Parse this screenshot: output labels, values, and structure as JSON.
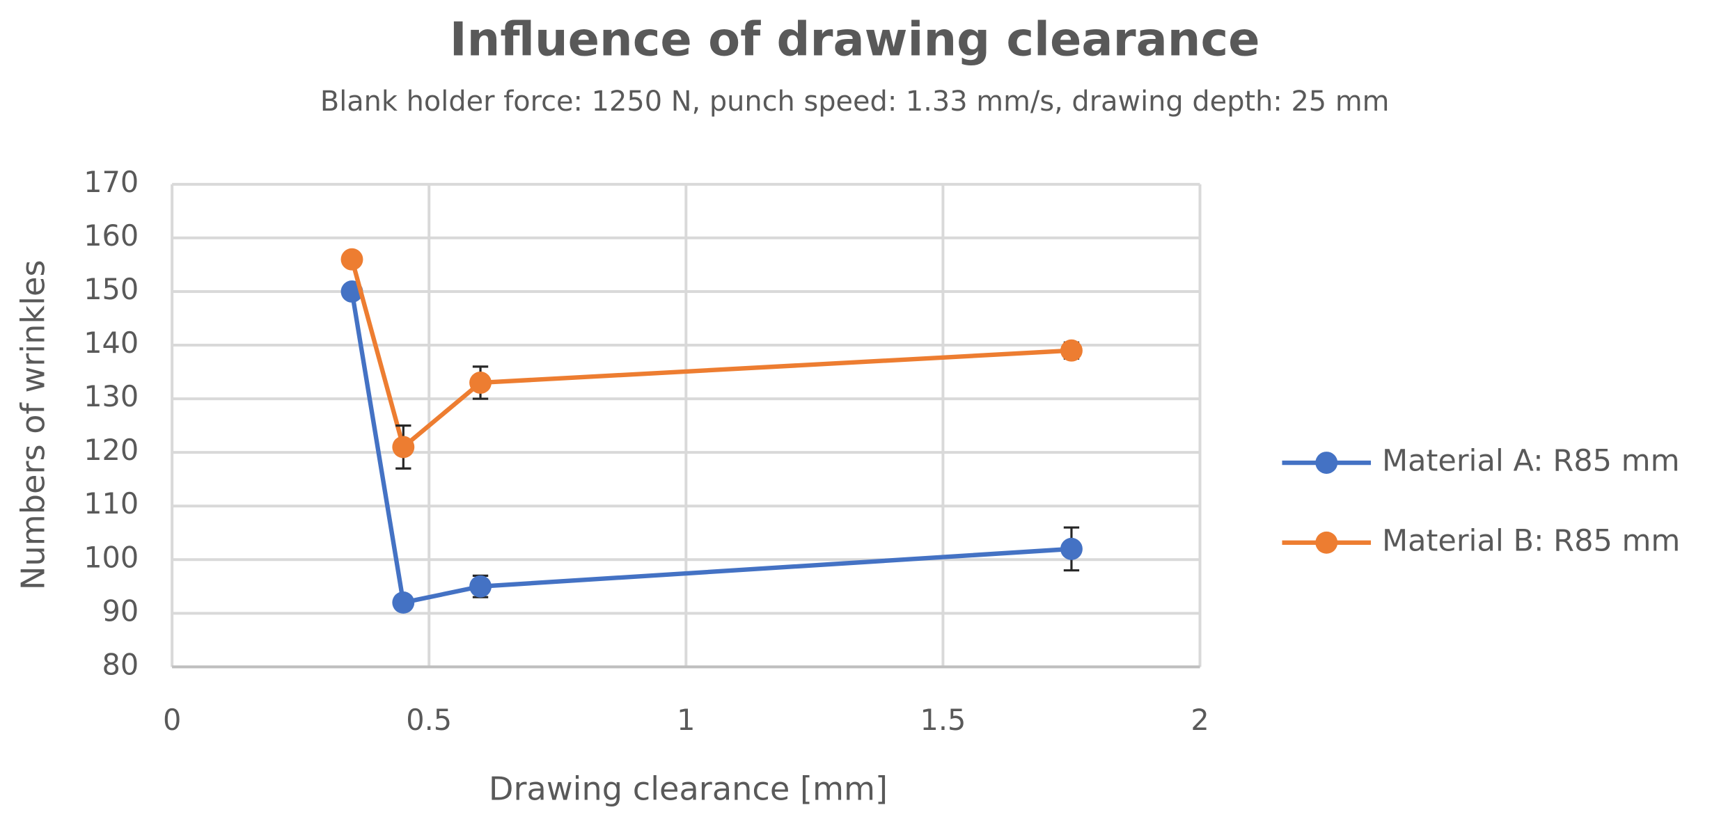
{
  "chart_data": {
    "type": "line",
    "title": "Influence of drawing clearance",
    "subtitle": "Blank holder force: 1250 N, punch speed: 1.33 mm/s, drawing depth: 25 mm",
    "x_label": "Drawing clearance [mm]",
    "y_label": "Numbers of wrinkles",
    "x": [
      0.35,
      0.45,
      0.6,
      1.75
    ],
    "series": [
      {
        "name": "Material A: R85 mm",
        "color": "#4472c4",
        "values": [
          150,
          92,
          95,
          102
        ],
        "errors": [
          1,
          1,
          2,
          4
        ]
      },
      {
        "name": "Material B: R85 mm",
        "color": "#ed7d31",
        "values": [
          156,
          121,
          133,
          139
        ],
        "errors": [
          1,
          4,
          3,
          1.5
        ]
      }
    ],
    "xlim": [
      0,
      2
    ],
    "xticks": [
      0,
      0.5,
      1,
      1.5,
      2
    ],
    "ylim": [
      80,
      170
    ],
    "yticks": [
      80,
      90,
      100,
      110,
      120,
      130,
      140,
      150,
      160,
      170
    ],
    "grid": true,
    "legend": "right"
  }
}
